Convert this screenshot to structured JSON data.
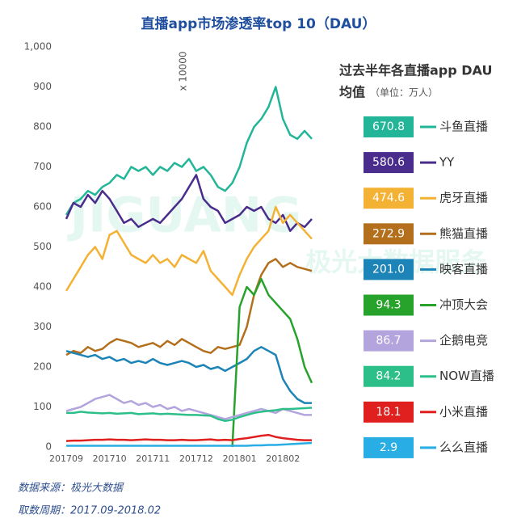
{
  "chart_data": {
    "type": "line",
    "title": "直播app市场渗透率top 10（DAU）",
    "y_label": "x 10000",
    "legend_title": "过去半年各直播app DAU",
    "legend_title_2": "均值",
    "legend_unit": "（单位：万人）",
    "watermark": "JIGUANG",
    "watermark_2": "极光大数据服务",
    "source": "数据来源：极光大数据",
    "period": "取数周期：2017.09-2018.02",
    "ylim": [
      0,
      1000
    ],
    "yticks": [
      0,
      100,
      200,
      300,
      400,
      500,
      600,
      700,
      800,
      900,
      {
        "value": 1000,
        "label": "1,000"
      }
    ],
    "grid": false,
    "categories": [
      "201709",
      null,
      null,
      null,
      null,
      null,
      "201710",
      null,
      null,
      null,
      null,
      null,
      "201711",
      null,
      null,
      null,
      null,
      null,
      "201712",
      null,
      null,
      null,
      null,
      null,
      "201801",
      null,
      null,
      null,
      null,
      null,
      "201802",
      null,
      null,
      null,
      null
    ],
    "series": [
      {
        "name": "斗鱼直播",
        "color": "#22b597",
        "average": 670.8,
        "values": [
          580,
          610,
          620,
          640,
          630,
          650,
          660,
          680,
          670,
          700,
          690,
          700,
          680,
          700,
          690,
          710,
          700,
          720,
          690,
          700,
          680,
          650,
          640,
          660,
          700,
          760,
          800,
          820,
          850,
          900,
          820,
          780,
          770,
          790,
          770
        ]
      },
      {
        "name": "YY",
        "color": "#4a2c8c",
        "average": 580.6,
        "values": [
          570,
          610,
          600,
          630,
          610,
          640,
          620,
          590,
          560,
          570,
          550,
          560,
          570,
          560,
          580,
          600,
          620,
          650,
          680,
          620,
          600,
          590,
          560,
          570,
          580,
          600,
          590,
          600,
          570,
          560,
          580,
          540,
          560,
          550,
          570
        ]
      },
      {
        "name": "虎牙直播",
        "color": "#f4b234",
        "average": 474.6,
        "values": [
          390,
          420,
          450,
          480,
          500,
          470,
          530,
          540,
          510,
          480,
          470,
          460,
          480,
          460,
          470,
          450,
          480,
          470,
          460,
          490,
          440,
          420,
          400,
          380,
          430,
          470,
          500,
          520,
          540,
          600,
          560,
          580,
          560,
          540,
          520
        ]
      },
      {
        "name": "熊猫直播",
        "color": "#b36f1c",
        "average": 272.9,
        "values": [
          230,
          240,
          235,
          250,
          240,
          245,
          260,
          270,
          265,
          260,
          250,
          255,
          260,
          250,
          265,
          255,
          270,
          260,
          250,
          240,
          235,
          250,
          245,
          250,
          255,
          300,
          380,
          430,
          460,
          470,
          450,
          460,
          450,
          445,
          440
        ]
      },
      {
        "name": "映客直播",
        "color": "#1c84b6",
        "average": {
          "value": 201,
          "label": "201.0"
        },
        "values": [
          240,
          235,
          230,
          225,
          230,
          220,
          225,
          215,
          220,
          210,
          215,
          210,
          220,
          210,
          205,
          210,
          215,
          210,
          200,
          205,
          195,
          200,
          190,
          200,
          210,
          220,
          240,
          250,
          240,
          230,
          170,
          140,
          120,
          110,
          110
        ]
      },
      {
        "name": "冲顶大会",
        "color": "#27a32b",
        "average": 94.3,
        "values": [
          null,
          null,
          null,
          null,
          null,
          null,
          null,
          null,
          null,
          null,
          null,
          null,
          null,
          null,
          null,
          null,
          null,
          null,
          null,
          null,
          null,
          null,
          null,
          0,
          350,
          400,
          380,
          420,
          380,
          360,
          340,
          320,
          270,
          200,
          160
        ]
      },
      {
        "name": "企鹅电竞",
        "color": "#b3a4de",
        "average": 86.7,
        "values": [
          90,
          95,
          100,
          110,
          120,
          125,
          130,
          120,
          110,
          115,
          105,
          110,
          100,
          105,
          95,
          100,
          90,
          95,
          90,
          85,
          80,
          75,
          70,
          75,
          80,
          85,
          90,
          95,
          90,
          85,
          95,
          90,
          85,
          80,
          80
        ]
      },
      {
        "name": "NOW直播",
        "color": "#2dbf8a",
        "average": 84.2,
        "values": [
          85,
          85,
          88,
          86,
          85,
          84,
          85,
          83,
          84,
          85,
          82,
          83,
          84,
          82,
          83,
          82,
          81,
          80,
          80,
          79,
          78,
          70,
          65,
          68,
          75,
          80,
          85,
          88,
          90,
          92,
          95,
          95,
          96,
          97,
          98
        ]
      },
      {
        "name": "小米直播",
        "color": "#e0201f",
        "average": 18.1,
        "values": [
          15,
          16,
          16,
          17,
          18,
          18,
          19,
          18,
          18,
          17,
          18,
          19,
          18,
          18,
          17,
          17,
          18,
          17,
          17,
          18,
          19,
          17,
          18,
          17,
          20,
          22,
          25,
          28,
          30,
          25,
          22,
          20,
          18,
          17,
          17
        ]
      },
      {
        "name": "么么直播",
        "color": "#28ade4",
        "average": 2.9,
        "values": [
          3,
          3,
          3,
          3,
          3,
          3,
          3,
          3,
          3,
          3,
          3,
          3,
          3,
          3,
          3,
          3,
          3,
          3,
          3,
          3,
          3,
          3,
          3,
          3,
          3,
          3,
          4,
          4,
          5,
          5,
          6,
          7,
          8,
          9,
          10
        ]
      }
    ]
  }
}
